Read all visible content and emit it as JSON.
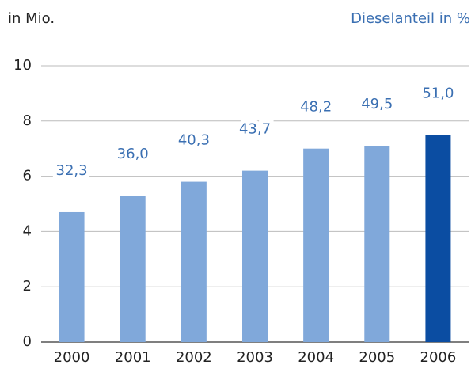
{
  "chart_data": {
    "type": "bar",
    "y_label": "in Mio.",
    "categories": [
      "2000",
      "2001",
      "2002",
      "2003",
      "2004",
      "2005",
      "2006"
    ],
    "values": [
      4.7,
      5.3,
      5.8,
      6.2,
      7.0,
      7.1,
      7.5
    ],
    "colors": [
      "#80a8da",
      "#80a8da",
      "#80a8da",
      "#80a8da",
      "#80a8da",
      "#80a8da",
      "#0b4da2"
    ],
    "ylim": [
      0,
      10
    ],
    "yticks": [
      0,
      2,
      4,
      6,
      8,
      10
    ],
    "grid": true,
    "diesel": {
      "label": "Dieselanteil in %",
      "values": [
        32.3,
        36.0,
        40.3,
        43.7,
        48.2,
        49.5,
        51.0
      ],
      "value_labels": [
        "32,3",
        "36,0",
        "40,3",
        "43,7",
        "48,2",
        "49,5",
        "51,0"
      ]
    }
  }
}
